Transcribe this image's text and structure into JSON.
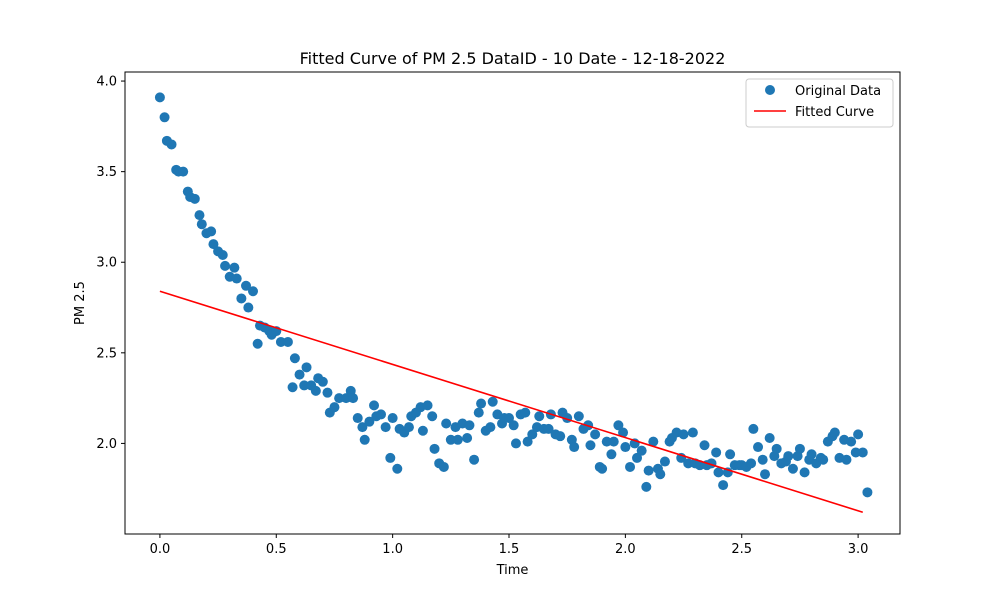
{
  "chart_data": {
    "type": "scatter",
    "title": "Fitted Curve of PM 2.5 DataID - 10 Date - 12-18-2022",
    "xlabel": "Time",
    "ylabel": "PM 2.5",
    "xlim": [
      -0.15,
      3.18
    ],
    "ylim": [
      1.5,
      4.05
    ],
    "xticks": [
      0.0,
      0.5,
      1.0,
      1.5,
      2.0,
      2.5,
      3.0
    ],
    "xtick_labels": [
      "0.0",
      "0.5",
      "1.0",
      "1.5",
      "2.0",
      "2.5",
      "3.0"
    ],
    "yticks": [
      2.0,
      2.5,
      3.0,
      3.5,
      4.0
    ],
    "ytick_labels": [
      "2.0",
      "2.5",
      "3.0",
      "3.5",
      "4.0"
    ],
    "grid": false,
    "legend_position": "top-right",
    "series": [
      {
        "name": "Original Data",
        "kind": "scatter",
        "color": "#1f77b4",
        "points": [
          [
            0.0,
            3.91
          ],
          [
            0.02,
            3.8
          ],
          [
            0.03,
            3.67
          ],
          [
            0.05,
            3.65
          ],
          [
            0.07,
            3.51
          ],
          [
            0.08,
            3.5
          ],
          [
            0.1,
            3.5
          ],
          [
            0.12,
            3.39
          ],
          [
            0.13,
            3.36
          ],
          [
            0.15,
            3.35
          ],
          [
            0.17,
            3.26
          ],
          [
            0.18,
            3.21
          ],
          [
            0.2,
            3.16
          ],
          [
            0.22,
            3.17
          ],
          [
            0.23,
            3.1
          ],
          [
            0.25,
            3.06
          ],
          [
            0.27,
            3.04
          ],
          [
            0.28,
            2.98
          ],
          [
            0.3,
            2.92
          ],
          [
            0.32,
            2.97
          ],
          [
            0.33,
            2.91
          ],
          [
            0.35,
            2.8
          ],
          [
            0.37,
            2.87
          ],
          [
            0.38,
            2.75
          ],
          [
            0.4,
            2.84
          ],
          [
            0.42,
            2.55
          ],
          [
            0.43,
            2.65
          ],
          [
            0.45,
            2.64
          ],
          [
            0.47,
            2.62
          ],
          [
            0.48,
            2.6
          ],
          [
            0.5,
            2.62
          ],
          [
            0.52,
            2.56
          ],
          [
            0.55,
            2.56
          ],
          [
            0.57,
            2.31
          ],
          [
            0.58,
            2.47
          ],
          [
            0.6,
            2.38
          ],
          [
            0.62,
            2.32
          ],
          [
            0.63,
            2.42
          ],
          [
            0.65,
            2.32
          ],
          [
            0.67,
            2.29
          ],
          [
            0.68,
            2.36
          ],
          [
            0.7,
            2.34
          ],
          [
            0.72,
            2.28
          ],
          [
            0.73,
            2.17
          ],
          [
            0.75,
            2.2
          ],
          [
            0.77,
            2.25
          ],
          [
            0.8,
            2.25
          ],
          [
            0.82,
            2.29
          ],
          [
            0.83,
            2.25
          ],
          [
            0.85,
            2.14
          ],
          [
            0.87,
            2.09
          ],
          [
            0.88,
            2.02
          ],
          [
            0.9,
            2.12
          ],
          [
            0.92,
            2.21
          ],
          [
            0.93,
            2.15
          ],
          [
            0.95,
            2.16
          ],
          [
            0.97,
            2.09
          ],
          [
            0.99,
            1.92
          ],
          [
            1.0,
            2.14
          ],
          [
            1.02,
            1.86
          ],
          [
            1.03,
            2.08
          ],
          [
            1.05,
            2.06
          ],
          [
            1.07,
            2.09
          ],
          [
            1.08,
            2.15
          ],
          [
            1.1,
            2.17
          ],
          [
            1.12,
            2.2
          ],
          [
            1.13,
            2.07
          ],
          [
            1.15,
            2.21
          ],
          [
            1.17,
            2.15
          ],
          [
            1.18,
            1.97
          ],
          [
            1.2,
            1.89
          ],
          [
            1.22,
            1.87
          ],
          [
            1.23,
            2.11
          ],
          [
            1.25,
            2.02
          ],
          [
            1.27,
            2.09
          ],
          [
            1.28,
            2.02
          ],
          [
            1.3,
            2.11
          ],
          [
            1.32,
            2.03
          ],
          [
            1.33,
            2.1
          ],
          [
            1.35,
            1.91
          ],
          [
            1.37,
            2.17
          ],
          [
            1.38,
            2.22
          ],
          [
            1.4,
            2.07
          ],
          [
            1.42,
            2.09
          ],
          [
            1.43,
            2.23
          ],
          [
            1.45,
            2.16
          ],
          [
            1.47,
            2.11
          ],
          [
            1.48,
            2.14
          ],
          [
            1.5,
            2.14
          ],
          [
            1.52,
            2.1
          ],
          [
            1.53,
            2.0
          ],
          [
            1.55,
            2.16
          ],
          [
            1.57,
            2.17
          ],
          [
            1.58,
            2.01
          ],
          [
            1.6,
            2.05
          ],
          [
            1.62,
            2.09
          ],
          [
            1.63,
            2.15
          ],
          [
            1.65,
            2.08
          ],
          [
            1.67,
            2.08
          ],
          [
            1.68,
            2.16
          ],
          [
            1.7,
            2.05
          ],
          [
            1.72,
            2.04
          ],
          [
            1.73,
            2.17
          ],
          [
            1.75,
            2.14
          ],
          [
            1.77,
            2.02
          ],
          [
            1.78,
            1.98
          ],
          [
            1.8,
            2.15
          ],
          [
            1.82,
            2.08
          ],
          [
            1.84,
            2.1
          ],
          [
            1.85,
            1.99
          ],
          [
            1.87,
            2.05
          ],
          [
            1.89,
            1.87
          ],
          [
            1.9,
            1.86
          ],
          [
            1.92,
            2.01
          ],
          [
            1.94,
            1.94
          ],
          [
            1.95,
            2.01
          ],
          [
            1.97,
            2.1
          ],
          [
            1.99,
            2.06
          ],
          [
            2.0,
            1.98
          ],
          [
            2.02,
            1.87
          ],
          [
            2.04,
            2.0
          ],
          [
            2.05,
            1.92
          ],
          [
            2.07,
            1.96
          ],
          [
            2.09,
            1.76
          ],
          [
            2.1,
            1.85
          ],
          [
            2.12,
            2.01
          ],
          [
            2.14,
            1.86
          ],
          [
            2.15,
            1.83
          ],
          [
            2.17,
            1.9
          ],
          [
            2.19,
            2.01
          ],
          [
            2.2,
            2.03
          ],
          [
            2.22,
            2.06
          ],
          [
            2.24,
            1.92
          ],
          [
            2.25,
            2.05
          ],
          [
            2.27,
            1.89
          ],
          [
            2.29,
            2.06
          ],
          [
            2.3,
            1.89
          ],
          [
            2.32,
            1.88
          ],
          [
            2.34,
            1.99
          ],
          [
            2.35,
            1.88
          ],
          [
            2.37,
            1.89
          ],
          [
            2.39,
            1.95
          ],
          [
            2.4,
            1.84
          ],
          [
            2.42,
            1.77
          ],
          [
            2.44,
            1.84
          ],
          [
            2.45,
            1.94
          ],
          [
            2.47,
            1.88
          ],
          [
            2.49,
            1.88
          ],
          [
            2.5,
            1.88
          ],
          [
            2.52,
            1.87
          ],
          [
            2.54,
            1.89
          ],
          [
            2.55,
            2.08
          ],
          [
            2.57,
            1.98
          ],
          [
            2.59,
            1.91
          ],
          [
            2.6,
            1.83
          ],
          [
            2.62,
            2.03
          ],
          [
            2.64,
            1.93
          ],
          [
            2.65,
            1.97
          ],
          [
            2.67,
            1.89
          ],
          [
            2.69,
            1.9
          ],
          [
            2.7,
            1.93
          ],
          [
            2.72,
            1.86
          ],
          [
            2.74,
            1.93
          ],
          [
            2.75,
            1.97
          ],
          [
            2.77,
            1.84
          ],
          [
            2.79,
            1.91
          ],
          [
            2.8,
            1.94
          ],
          [
            2.82,
            1.89
          ],
          [
            2.84,
            1.92
          ],
          [
            2.85,
            1.91
          ],
          [
            2.87,
            2.01
          ],
          [
            2.89,
            2.04
          ],
          [
            2.9,
            2.06
          ],
          [
            2.92,
            1.92
          ],
          [
            2.94,
            2.02
          ],
          [
            2.95,
            1.91
          ],
          [
            2.97,
            2.01
          ],
          [
            2.99,
            1.95
          ],
          [
            3.0,
            2.05
          ],
          [
            3.02,
            1.95
          ],
          [
            3.04,
            1.73
          ]
        ]
      },
      {
        "name": "Fitted Curve",
        "kind": "line",
        "color": "#ff0000",
        "points": [
          [
            0.0,
            2.84
          ],
          [
            3.02,
            1.62
          ]
        ]
      }
    ]
  }
}
